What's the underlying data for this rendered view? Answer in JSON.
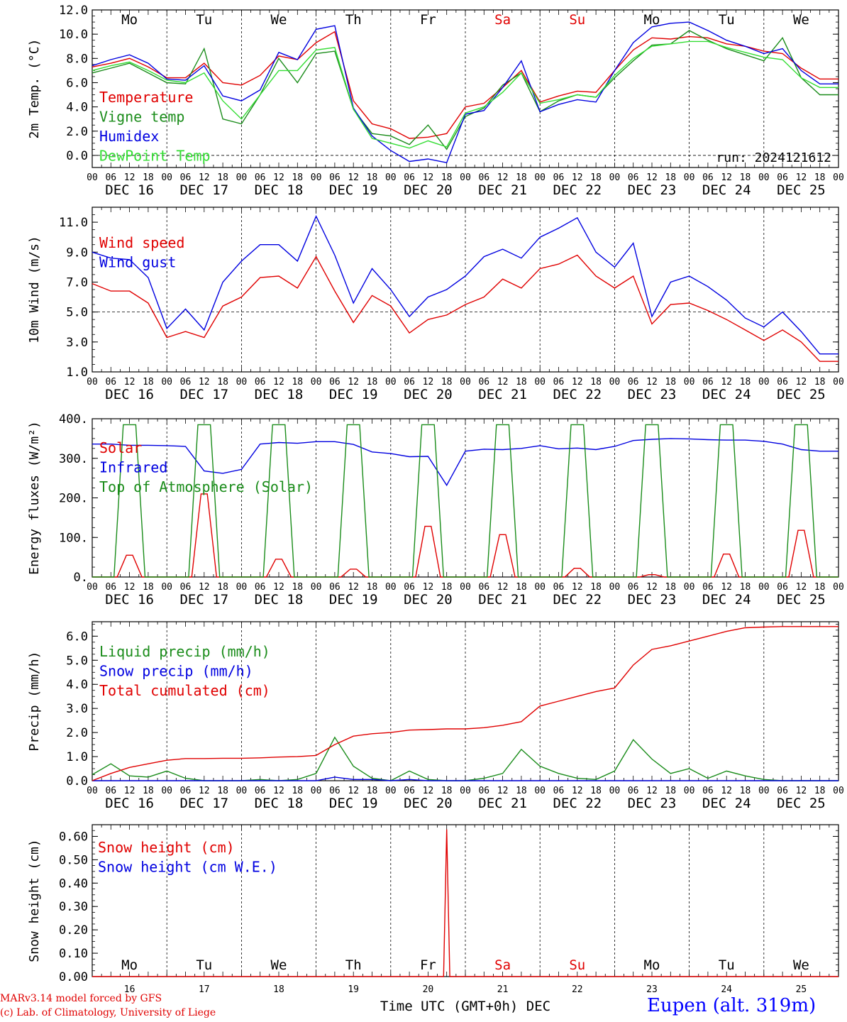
{
  "days": [
    "16",
    "17",
    "18",
    "19",
    "20",
    "21",
    "22",
    "23",
    "24",
    "25"
  ],
  "weekdays": [
    "Mo",
    "Tu",
    "We",
    "Th",
    "Fr",
    "Sa",
    "Su",
    "Mo",
    "Tu",
    "We"
  ],
  "weekend_color": "#e00000",
  "hour_ticks": [
    "00",
    "06",
    "12",
    "18"
  ],
  "month": "DEC",
  "colors": {
    "red": "#e00000",
    "green": "#1a8c1a",
    "blue": "#0000e0",
    "lightgreen": "#33dd33"
  },
  "panels": {
    "temp": {
      "ylabel": "2m Temp. (°C)",
      "yticks": [
        "0.0",
        "2.0",
        "4.0",
        "6.0",
        "8.0",
        "10.0",
        "12.0"
      ],
      "legend": [
        "Temperature",
        "Vigne temp",
        "Humidex",
        "DewPoint Temp"
      ],
      "run": "run: 2024121612"
    },
    "wind": {
      "ylabel": "10m Wind (m/s)",
      "yticks": [
        "1.0",
        "3.0",
        "5.0",
        "7.0",
        "9.0",
        "11.0"
      ],
      "legend": [
        "Wind speed",
        "Wind gust"
      ]
    },
    "energy": {
      "ylabel": "Energy fluxes (W/m²)",
      "yticks": [
        "0.",
        "100.",
        "200.",
        "300.",
        "400."
      ],
      "legend": [
        "Solar",
        "Infrared",
        "Top of Atmosphere (Solar)"
      ]
    },
    "precip": {
      "ylabel": "Precip (mm/h)",
      "yticks": [
        "0.0",
        "1.0",
        "2.0",
        "3.0",
        "4.0",
        "5.0",
        "6.0"
      ],
      "legend": [
        "Liquid precip (mm/h)",
        "Snow precip (mm/h)",
        "Total cumulated (cm)"
      ]
    },
    "snow": {
      "ylabel": "Snow height (cm)",
      "yticks": [
        "0.00",
        "0.10",
        "0.20",
        "0.30",
        "0.40",
        "0.50",
        "0.60"
      ],
      "legend": [
        "Snow height (cm)",
        "Snow height (cm W.E.)"
      ]
    }
  },
  "xlabel": "Time UTC (GMT+0h) DEC",
  "footer": [
    "MARv3.14 model forced by GFS",
    "(c) Lab. of Climatology, University of Liege"
  ],
  "station": "Eupen (alt. 319m)",
  "chart_data": [
    {
      "type": "line",
      "ylabel": "2m Temp. (°C)",
      "ylim": [
        -1.0,
        12.0
      ],
      "x_hours": [
        0,
        6,
        12,
        18,
        24,
        30,
        36,
        42,
        48,
        54,
        60,
        66,
        72,
        78,
        84,
        90,
        96,
        102,
        108,
        114,
        120,
        126,
        132,
        138,
        144,
        150,
        156,
        162,
        168,
        174,
        180,
        186,
        192,
        198,
        204,
        210,
        216,
        222,
        228,
        234
      ],
      "series": [
        {
          "name": "Temperature",
          "color": "red",
          "values": [
            7.3,
            7.6,
            8.0,
            7.3,
            6.4,
            6.4,
            7.6,
            6.0,
            5.8,
            6.6,
            8.2,
            7.9,
            9.3,
            10.2,
            4.5,
            2.6,
            2.2,
            1.4,
            1.5,
            1.8,
            4.0,
            4.3,
            5.6,
            7.0,
            4.4,
            4.9,
            5.3,
            5.2,
            7.0,
            8.7,
            9.7,
            9.6,
            9.8,
            9.7,
            9.2,
            9.0,
            8.6,
            8.4,
            7.2,
            6.3
          ]
        },
        {
          "name": "Vigne temp",
          "color": "green",
          "values": [
            6.8,
            7.2,
            7.6,
            6.8,
            6.0,
            5.9,
            8.8,
            3.0,
            2.6,
            5.0,
            8.0,
            6.0,
            8.4,
            8.6,
            3.8,
            1.8,
            1.6,
            0.9,
            2.5,
            0.5,
            3.2,
            3.9,
            5.8,
            6.8,
            3.6,
            4.5,
            5.0,
            4.8,
            6.4,
            7.8,
            9.1,
            9.2,
            10.3,
            9.5,
            8.8,
            8.3,
            7.8,
            9.7,
            6.4,
            5.0
          ]
        },
        {
          "name": "Humidex",
          "color": "blue",
          "values": [
            7.4,
            7.9,
            8.3,
            7.6,
            6.3,
            6.2,
            7.4,
            4.9,
            4.5,
            5.4,
            8.5,
            7.9,
            10.4,
            10.7,
            3.9,
            1.6,
            0.4,
            -0.5,
            -0.3,
            -0.6,
            3.4,
            3.7,
            5.6,
            7.8,
            3.6,
            4.2,
            4.6,
            4.4,
            7.0,
            9.3,
            10.6,
            10.9,
            11.0,
            10.3,
            9.5,
            9.0,
            8.4,
            8.8,
            7.0,
            5.9
          ]
        },
        {
          "name": "DewPoint Temp",
          "color": "lightgreen",
          "values": [
            7.0,
            7.4,
            7.7,
            7.0,
            6.2,
            6.0,
            6.8,
            4.5,
            3.0,
            5.0,
            7.0,
            7.0,
            8.7,
            8.9,
            3.8,
            1.4,
            1.0,
            0.6,
            1.2,
            0.7,
            3.5,
            4.0,
            5.2,
            6.8,
            4.3,
            4.6,
            5.0,
            4.8,
            6.6,
            8.0,
            9.0,
            9.2,
            9.4,
            9.4,
            8.9,
            8.5,
            8.1,
            7.9,
            6.4,
            5.6
          ]
        }
      ]
    },
    {
      "type": "line",
      "ylabel": "10m Wind (m/s)",
      "ylim": [
        1.0,
        12.0
      ],
      "x_hours": [
        0,
        6,
        12,
        18,
        24,
        30,
        36,
        42,
        48,
        54,
        60,
        66,
        72,
        78,
        84,
        90,
        96,
        102,
        108,
        114,
        120,
        126,
        132,
        138,
        144,
        150,
        156,
        162,
        168,
        174,
        180,
        186,
        192,
        198,
        204,
        210,
        216,
        222,
        228,
        234
      ],
      "series": [
        {
          "name": "Wind speed",
          "color": "red",
          "values": [
            6.9,
            6.4,
            6.4,
            5.6,
            3.3,
            3.7,
            3.3,
            5.4,
            6.0,
            7.3,
            7.4,
            6.6,
            8.7,
            6.4,
            4.3,
            6.1,
            5.4,
            3.6,
            4.5,
            4.8,
            5.5,
            6.0,
            7.2,
            6.6,
            7.9,
            8.2,
            8.8,
            7.4,
            6.6,
            7.4,
            4.2,
            5.5,
            5.6,
            5.1,
            4.5,
            3.8,
            3.1,
            3.8,
            3.0,
            1.7
          ]
        },
        {
          "name": "Wind gust",
          "color": "blue",
          "values": [
            9.0,
            8.6,
            8.5,
            7.3,
            3.9,
            5.2,
            3.8,
            7.0,
            8.4,
            9.5,
            9.5,
            8.4,
            11.4,
            8.8,
            5.6,
            7.9,
            6.5,
            4.7,
            6.0,
            6.5,
            7.4,
            8.7,
            9.2,
            8.6,
            10.0,
            10.6,
            11.3,
            9.0,
            8.0,
            9.6,
            4.7,
            7.0,
            7.4,
            6.7,
            5.8,
            4.6,
            4.0,
            5.0,
            3.7,
            2.2
          ]
        }
      ]
    },
    {
      "type": "line",
      "ylabel": "Energy fluxes (W/m²)",
      "ylim": [
        0,
        400
      ],
      "x_hours": [
        0,
        6,
        12,
        18,
        24,
        30,
        36,
        42,
        48,
        54,
        60,
        66,
        72,
        78,
        84,
        90,
        96,
        102,
        108,
        114,
        120,
        126,
        132,
        138,
        144,
        150,
        156,
        162,
        168,
        174,
        180,
        186,
        192,
        198,
        204,
        210,
        216,
        222,
        228,
        234
      ],
      "series": [
        {
          "name": "Infrared",
          "color": "blue",
          "values": [
            336,
            336,
            333,
            333,
            332,
            330,
            268,
            262,
            272,
            336,
            340,
            338,
            342,
            342,
            335,
            316,
            312,
            304,
            305,
            232,
            318,
            323,
            322,
            325,
            332,
            324,
            326,
            322,
            330,
            345,
            348,
            350,
            349,
            347,
            346,
            346,
            343,
            336,
            322,
            318
          ]
        },
        {
          "name": "Solar",
          "color": "red",
          "daily_peak": [
            55,
            210,
            45,
            20,
            128,
            107,
            22,
            6,
            58,
            118
          ]
        },
        {
          "name": "Top of Atmosphere (Solar)",
          "color": "green",
          "daily_peak": [
            385,
            385,
            385,
            385,
            385,
            385,
            385,
            385,
            385,
            385
          ]
        }
      ]
    },
    {
      "type": "line",
      "ylabel": "Precip (mm/h)",
      "ylim": [
        0,
        6.6
      ],
      "x_hours": [
        0,
        6,
        12,
        18,
        24,
        30,
        36,
        42,
        48,
        54,
        60,
        66,
        72,
        78,
        84,
        90,
        96,
        102,
        108,
        114,
        120,
        126,
        132,
        138,
        144,
        150,
        156,
        162,
        168,
        174,
        180,
        186,
        192,
        198,
        204,
        210,
        216,
        222,
        228,
        234
      ],
      "series": [
        {
          "name": "Liquid precip (mm/h)",
          "color": "green",
          "values": [
            0.25,
            0.7,
            0.2,
            0.15,
            0.4,
            0.1,
            0.0,
            0.0,
            0.0,
            0.05,
            0.0,
            0.05,
            0.3,
            1.8,
            0.6,
            0.1,
            0.0,
            0.4,
            0.05,
            0.0,
            0.0,
            0.1,
            0.3,
            1.3,
            0.6,
            0.3,
            0.1,
            0.05,
            0.4,
            1.7,
            0.9,
            0.3,
            0.5,
            0.1,
            0.4,
            0.2,
            0.05,
            0.0,
            0.0,
            0.0
          ]
        },
        {
          "name": "Snow precip (mm/h)",
          "color": "blue",
          "values": [
            0,
            0,
            0,
            0,
            0,
            0,
            0,
            0,
            0,
            0,
            0,
            0,
            0,
            0.15,
            0.05,
            0.05,
            0,
            0.05,
            0,
            0,
            0,
            0,
            0,
            0,
            0,
            0,
            0,
            0,
            0,
            0,
            0,
            0,
            0,
            0,
            0,
            0,
            0,
            0,
            0,
            0
          ]
        },
        {
          "name": "Total cumulated (cm)",
          "color": "red",
          "values": [
            0.0,
            0.3,
            0.55,
            0.7,
            0.85,
            0.92,
            0.92,
            0.93,
            0.93,
            0.95,
            0.98,
            1.0,
            1.05,
            1.5,
            1.85,
            1.95,
            2.0,
            2.1,
            2.12,
            2.15,
            2.15,
            2.2,
            2.3,
            2.45,
            3.1,
            3.3,
            3.5,
            3.7,
            3.85,
            4.8,
            5.45,
            5.6,
            5.8,
            6.0,
            6.2,
            6.35,
            6.38,
            6.4,
            6.4,
            6.4
          ]
        }
      ]
    },
    {
      "type": "line",
      "ylabel": "Snow height (cm)",
      "ylim": [
        0,
        0.65
      ],
      "series": [
        {
          "name": "Snow height (cm)",
          "color": "red",
          "spike_hour": 114,
          "spike_value": 0.63
        },
        {
          "name": "Snow height (cm W.E.)",
          "color": "blue",
          "values": []
        }
      ]
    }
  ]
}
